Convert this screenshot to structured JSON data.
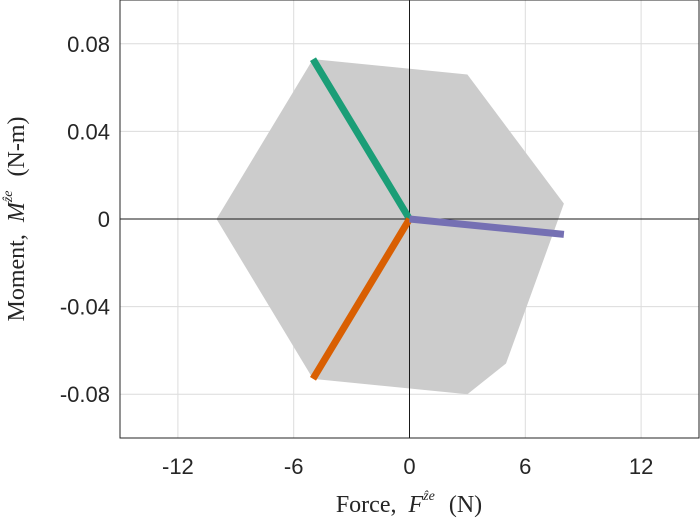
{
  "chart_data": {
    "type": "scatter",
    "title": "",
    "xlabel_text": "Force,",
    "xlabel_symbol": "F",
    "xlabel_sup": "ẑe",
    "xlabel_unit": "(N)",
    "ylabel_text": "Moment,",
    "ylabel_symbol": "M",
    "ylabel_sup": "ẑe",
    "ylabel_unit": "(N-m)",
    "xlim": [
      -15,
      15
    ],
    "ylim": [
      -0.1,
      0.1
    ],
    "xticks": [
      -12,
      -6,
      0,
      6,
      12
    ],
    "xtick_labels": [
      "-12",
      "-6",
      "0",
      "6",
      "12"
    ],
    "yticks": [
      -0.08,
      -0.04,
      0,
      0.04,
      0.08
    ],
    "ytick_labels": [
      "-0.08",
      "-0.04",
      "0",
      "0.04",
      "0.08"
    ],
    "grid": true,
    "region": {
      "color": "#cccccc",
      "vertices": [
        [
          -5,
          0.073
        ],
        [
          3,
          0.066
        ],
        [
          8,
          0.007
        ],
        [
          5,
          -0.066
        ],
        [
          3,
          -0.08
        ],
        [
          -5,
          -0.073
        ],
        [
          -10,
          0
        ]
      ]
    },
    "series": [
      {
        "color": "#1b9e77",
        "x": [
          0,
          -5
        ],
        "y": [
          0,
          0.073
        ]
      },
      {
        "color": "#d95f02",
        "x": [
          0,
          -5
        ],
        "y": [
          0,
          -0.073
        ]
      },
      {
        "color": "#7570b3",
        "x": [
          0,
          8
        ],
        "y": [
          0,
          -0.007
        ]
      }
    ]
  }
}
